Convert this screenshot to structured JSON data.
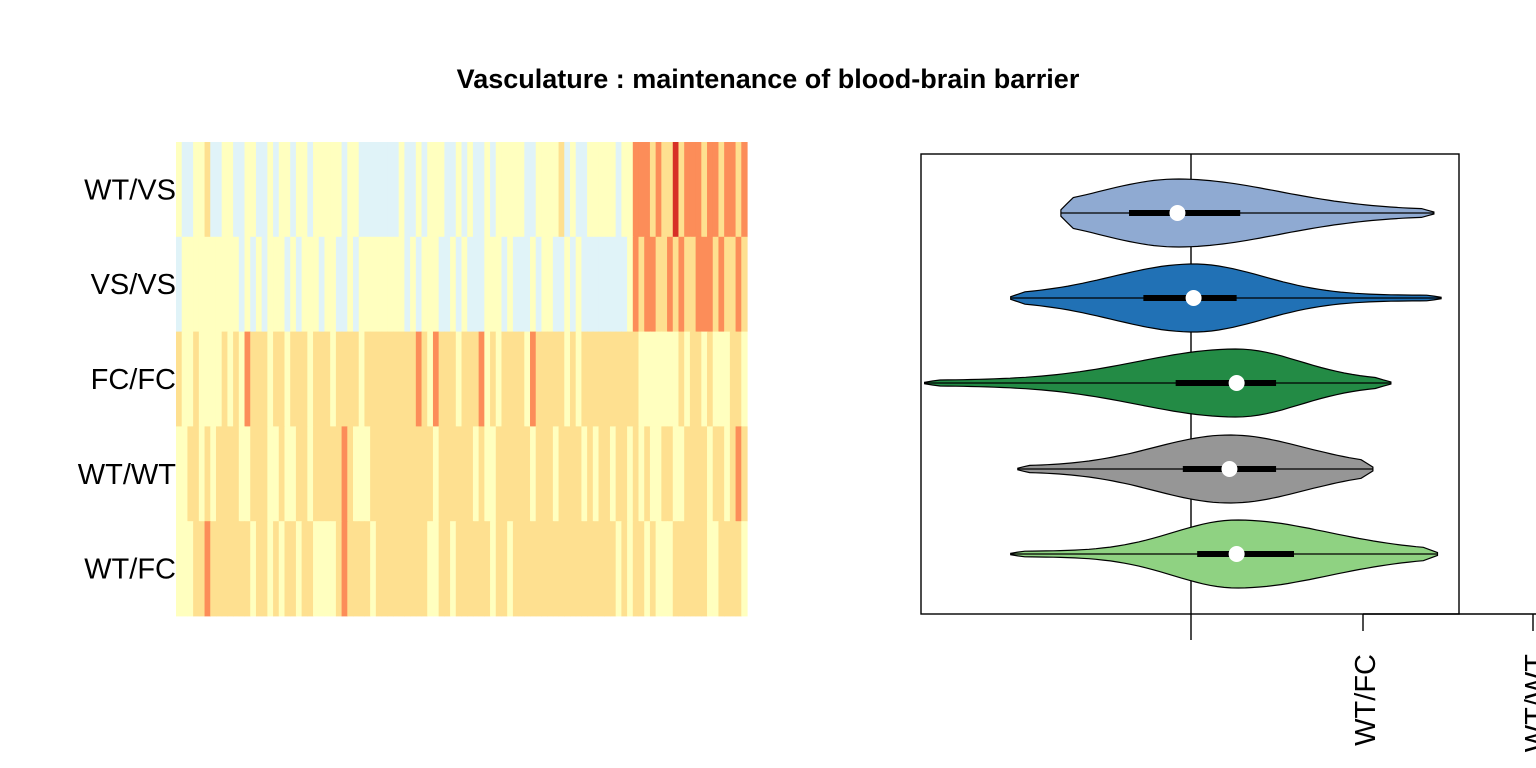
{
  "chart_data": [
    {
      "type": "heatmap",
      "title": "Vasculature : maintenance of blood-brain barrier",
      "rows": [
        "WT/VS",
        "VS/VS",
        "FC/FC",
        "WT/WT",
        "WT/FC"
      ],
      "n_columns": 100,
      "palette": [
        "#4575b4",
        "#91bfdb",
        "#e0f3f8",
        "#ffffbf",
        "#fee090",
        "#fc8d59",
        "#d73027"
      ],
      "values": [
        [
          0.52,
          0.42,
          0.37,
          0.51,
          0.44,
          0.58,
          0.41,
          0.35,
          0.45,
          0.51,
          0.4,
          0.42,
          0.57,
          0.5,
          0.42,
          0.38,
          0.47,
          0.42,
          0.52,
          0.45,
          0.37,
          0.46,
          0.52,
          0.35,
          0.53,
          0.54,
          0.43,
          0.53,
          0.49,
          0.4,
          0.46,
          0.47,
          0.33,
          0.4,
          0.37,
          0.37,
          0.36,
          0.36,
          0.37,
          0.48,
          0.36,
          0.38,
          0.5,
          0.4,
          0.5,
          0.5,
          0.44,
          0.42,
          0.36,
          0.43,
          0.39,
          0.47,
          0.38,
          0.42,
          0.48,
          0.34,
          0.49,
          0.48,
          0.44,
          0.47,
          0.54,
          0.33,
          0.38,
          0.5,
          0.44,
          0.55,
          0.51,
          0.63,
          0.29,
          0.46,
          0.4,
          0.39,
          0.56,
          0.46,
          0.48,
          0.55,
          0.45,
          0.4,
          0.51,
          0.52,
          0.84,
          0.77,
          0.75,
          0.66,
          0.82,
          0.69,
          0.69,
          0.88,
          0.69,
          0.79,
          0.82,
          0.79,
          0.69,
          0.74,
          0.8,
          0.68,
          0.74,
          0.73,
          0.7,
          0.74
        ],
        [
          0.34,
          0.45,
          0.44,
          0.52,
          0.48,
          0.48,
          0.44,
          0.45,
          0.48,
          0.5,
          0.44,
          0.38,
          0.48,
          0.41,
          0.44,
          0.39,
          0.46,
          0.45,
          0.48,
          0.36,
          0.48,
          0.32,
          0.45,
          0.45,
          0.44,
          0.4,
          0.46,
          0.45,
          0.42,
          0.39,
          0.5,
          0.39,
          0.45,
          0.5,
          0.52,
          0.46,
          0.44,
          0.46,
          0.44,
          0.44,
          0.35,
          0.47,
          0.42,
          0.48,
          0.46,
          0.48,
          0.39,
          0.39,
          0.45,
          0.42,
          0.45,
          0.38,
          0.42,
          0.39,
          0.48,
          0.47,
          0.45,
          0.38,
          0.45,
          0.35,
          0.38,
          0.41,
          0.47,
          0.4,
          0.48,
          0.43,
          0.42,
          0.39,
          0.48,
          0.35,
          0.47,
          0.33,
          0.42,
          0.38,
          0.42,
          0.33,
          0.32,
          0.41,
          0.38,
          0.45,
          0.73,
          0.7,
          0.77,
          0.79,
          0.66,
          0.66,
          0.82,
          0.69,
          0.78,
          0.7,
          0.71,
          0.73,
          0.73,
          0.77,
          0.69,
          0.76,
          0.71,
          0.69,
          0.72,
          0.7
        ],
        [
          0.67,
          0.55,
          0.56,
          0.65,
          0.5,
          0.57,
          0.56,
          0.52,
          0.64,
          0.54,
          0.69,
          0.57,
          0.75,
          0.66,
          0.71,
          0.64,
          0.52,
          0.62,
          0.63,
          0.57,
          0.64,
          0.64,
          0.65,
          0.56,
          0.71,
          0.58,
          0.69,
          0.55,
          0.58,
          0.65,
          0.69,
          0.58,
          0.56,
          0.61,
          0.7,
          0.58,
          0.66,
          0.66,
          0.67,
          0.7,
          0.65,
          0.69,
          0.73,
          0.64,
          0.53,
          0.75,
          0.58,
          0.64,
          0.58,
          0.53,
          0.59,
          0.67,
          0.6,
          0.73,
          0.52,
          0.67,
          0.57,
          0.58,
          0.6,
          0.62,
          0.66,
          0.55,
          0.74,
          0.65,
          0.7,
          0.63,
          0.62,
          0.64,
          0.57,
          0.6,
          0.56,
          0.6,
          0.61,
          0.61,
          0.62,
          0.63,
          0.63,
          0.66,
          0.65,
          0.62,
          0.61,
          0.54,
          0.52,
          0.5,
          0.52,
          0.53,
          0.45,
          0.57,
          0.63,
          0.56,
          0.62,
          0.59,
          0.57,
          0.63,
          0.57,
          0.49,
          0.49,
          0.61,
          0.6,
          0.52
        ],
        [
          0.52,
          0.56,
          0.67,
          0.62,
          0.56,
          0.61,
          0.57,
          0.66,
          0.58,
          0.62,
          0.64,
          0.57,
          0.5,
          0.61,
          0.58,
          0.65,
          0.57,
          0.55,
          0.7,
          0.56,
          0.53,
          0.71,
          0.64,
          0.55,
          0.62,
          0.62,
          0.6,
          0.6,
          0.6,
          0.72,
          0.69,
          0.56,
          0.55,
          0.52,
          0.62,
          0.59,
          0.67,
          0.62,
          0.61,
          0.59,
          0.58,
          0.67,
          0.64,
          0.61,
          0.62,
          0.56,
          0.65,
          0.6,
          0.59,
          0.63,
          0.6,
          0.6,
          0.57,
          0.63,
          0.57,
          0.57,
          0.59,
          0.65,
          0.67,
          0.64,
          0.62,
          0.67,
          0.52,
          0.63,
          0.6,
          0.59,
          0.56,
          0.62,
          0.62,
          0.68,
          0.61,
          0.57,
          0.62,
          0.55,
          0.62,
          0.58,
          0.57,
          0.67,
          0.65,
          0.56,
          0.64,
          0.52,
          0.67,
          0.55,
          0.57,
          0.6,
          0.66,
          0.56,
          0.56,
          0.62,
          0.58,
          0.63,
          0.6,
          0.54,
          0.62,
          0.59,
          0.57,
          0.66,
          0.72,
          0.68
        ],
        [
          0.56,
          0.57,
          0.51,
          0.65,
          0.63,
          0.73,
          0.63,
          0.66,
          0.66,
          0.65,
          0.61,
          0.59,
          0.59,
          0.57,
          0.65,
          0.69,
          0.51,
          0.6,
          0.57,
          0.66,
          0.67,
          0.57,
          0.62,
          0.64,
          0.51,
          0.57,
          0.57,
          0.55,
          0.63,
          0.75,
          0.68,
          0.64,
          0.66,
          0.68,
          0.56,
          0.61,
          0.59,
          0.61,
          0.69,
          0.61,
          0.58,
          0.6,
          0.6,
          0.59,
          0.54,
          0.54,
          0.64,
          0.66,
          0.54,
          0.63,
          0.64,
          0.61,
          0.63,
          0.6,
          0.6,
          0.57,
          0.61,
          0.59,
          0.55,
          0.62,
          0.6,
          0.63,
          0.64,
          0.59,
          0.58,
          0.6,
          0.58,
          0.62,
          0.63,
          0.65,
          0.59,
          0.6,
          0.71,
          0.63,
          0.61,
          0.63,
          0.6,
          0.56,
          0.64,
          0.53,
          0.6,
          0.6,
          0.55,
          0.62,
          0.55,
          0.55,
          0.56,
          0.62,
          0.61,
          0.64,
          0.68,
          0.61,
          0.59,
          0.55,
          0.57,
          0.61,
          0.58,
          0.58,
          0.61,
          0.54
        ]
      ]
    },
    {
      "type": "violin",
      "categories": [
        "WT/VS",
        "VS/VS",
        "FC/FC",
        "WT/WT",
        "WT/FC"
      ],
      "colors": [
        "#8faad2",
        "#2171b5",
        "#238b45",
        "#969696",
        "#8fd282"
      ],
      "xlim": [
        -0.75,
        0.75
      ],
      "reference_line": 0,
      "series": [
        {
          "name": "WT/VS",
          "min": -0.36,
          "q1": -0.17,
          "median": -0.035,
          "q3": 0.14,
          "max": 0.68
        },
        {
          "name": "VS/VS",
          "min": -0.5,
          "q1": -0.13,
          "median": 0.01,
          "q3": 0.13,
          "max": 0.7
        },
        {
          "name": "FC/FC",
          "min": -0.74,
          "q1": -0.04,
          "median": 0.13,
          "q3": 0.24,
          "max": 0.56
        },
        {
          "name": "WT/WT",
          "min": -0.48,
          "q1": -0.02,
          "median": 0.11,
          "q3": 0.24,
          "max": 0.51
        },
        {
          "name": "WT/FC",
          "min": -0.5,
          "q1": 0.02,
          "median": 0.13,
          "q3": 0.29,
          "max": 0.69
        }
      ],
      "x_tick_labels": [
        "WT/FC",
        "WT/WT"
      ]
    }
  ]
}
